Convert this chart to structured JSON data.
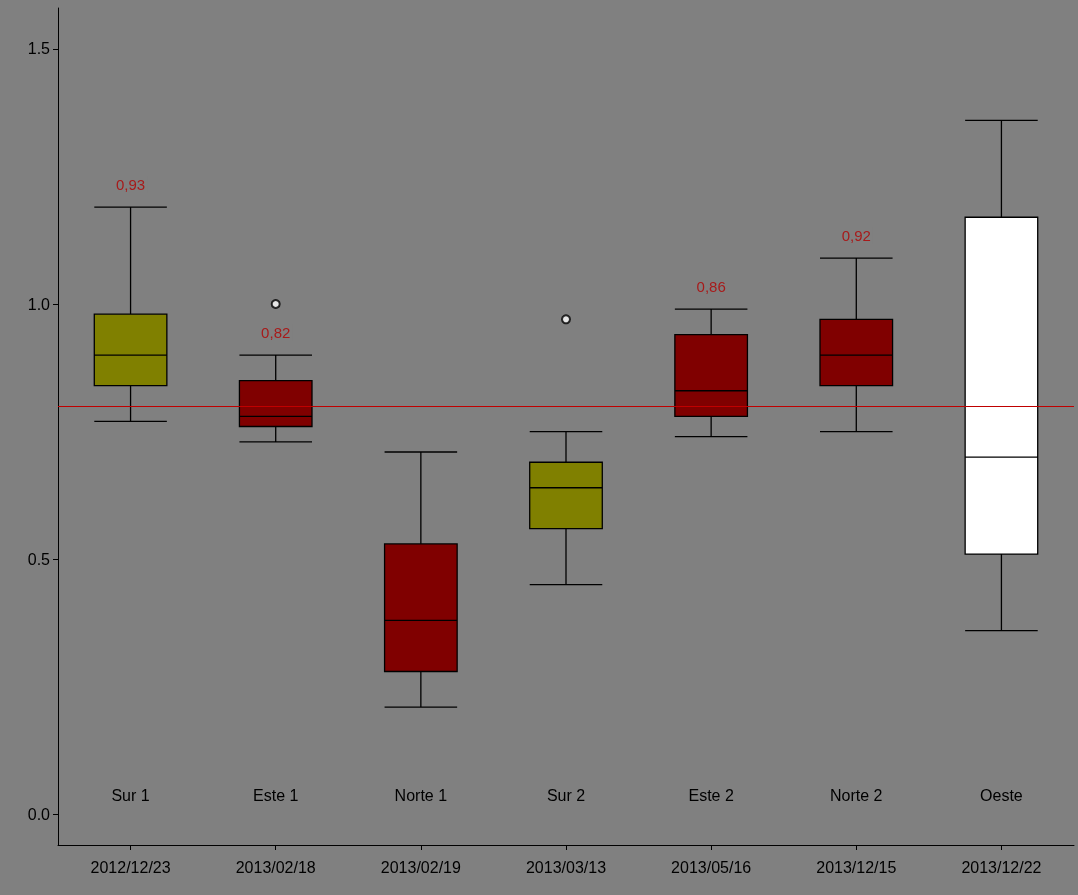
{
  "chart_data": {
    "type": "box",
    "categories": [
      "2012/12/23",
      "2013/02/18",
      "2013/02/19",
      "2013/03/13",
      "2013/05/16",
      "2013/12/15",
      "2013/12/22"
    ],
    "colors": [
      "#808000",
      "#800000",
      "#800000",
      "#808000",
      "#800000",
      "#800000",
      "#ffffff"
    ],
    "boxes": [
      {
        "low": 0.77,
        "q1": 0.84,
        "median": 0.9,
        "q3": 0.98,
        "high": 1.19
      },
      {
        "low": 0.73,
        "q1": 0.76,
        "median": 0.78,
        "q3": 0.85,
        "high": 0.9,
        "outliers": [
          1.0
        ]
      },
      {
        "low": 0.21,
        "q1": 0.28,
        "median": 0.38,
        "q3": 0.53,
        "high": 0.71
      },
      {
        "low": 0.45,
        "q1": 0.56,
        "median": 0.64,
        "q3": 0.69,
        "high": 0.75,
        "outliers": [
          0.97
        ]
      },
      {
        "low": 0.74,
        "q1": 0.78,
        "median": 0.83,
        "q3": 0.94,
        "high": 0.99
      },
      {
        "low": 0.75,
        "q1": 0.84,
        "median": 0.9,
        "q3": 0.97,
        "high": 1.09
      },
      {
        "low": 0.36,
        "q1": 0.51,
        "median": 0.7,
        "q3": 1.17,
        "high": 1.36
      }
    ],
    "ylim": [
      -0.06,
      1.58
    ],
    "yticks": [
      {
        "value": 0,
        "label": "0.0"
      },
      0.5,
      {
        "value": 1,
        "label": "1.0"
      },
      1.5
    ],
    "ref_lines": [
      {
        "axis": "y",
        "value": 0.8,
        "color": "#c00000"
      }
    ],
    "value_labels": [
      "0,93",
      "0,82",
      null,
      null,
      "0,86",
      "0,92",
      null
    ],
    "annotations": [
      "Sur 1",
      "Este 1",
      "Norte 1",
      "Sur 2",
      "Este 2",
      "Norte 2",
      "Oeste"
    ],
    "grid": false
  }
}
